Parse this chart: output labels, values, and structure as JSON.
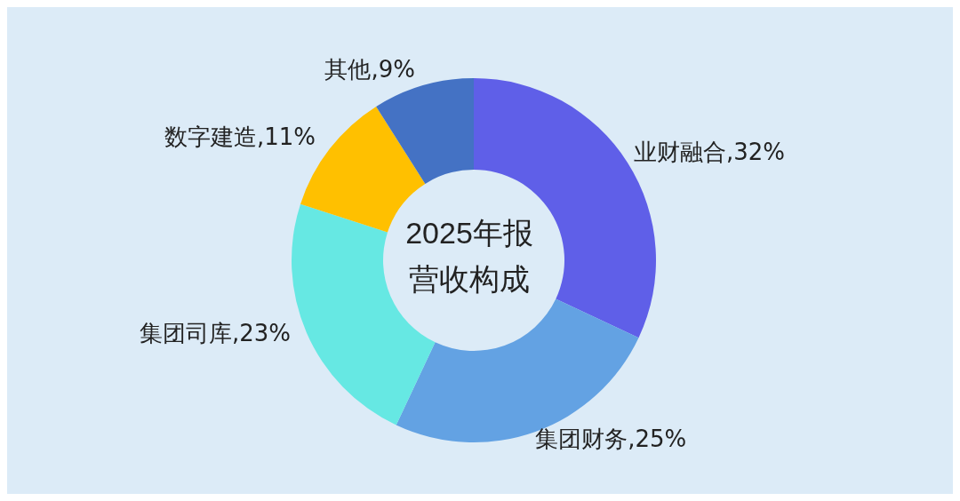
{
  "chart_data": {
    "type": "donut",
    "title": "2025年报营收构成",
    "categories": [
      "业财融合",
      "集团财务",
      "集团司库",
      "数字建造",
      "其他"
    ],
    "values": [
      32,
      25,
      23,
      11,
      9
    ],
    "value_labels": [
      "32%",
      "25%",
      "23%",
      "11%",
      "9%"
    ],
    "colors": [
      "#5f5fe8",
      "#63a2e3",
      "#66e8e3",
      "#ffc000",
      "#4472c4"
    ],
    "legend": false
  }
}
